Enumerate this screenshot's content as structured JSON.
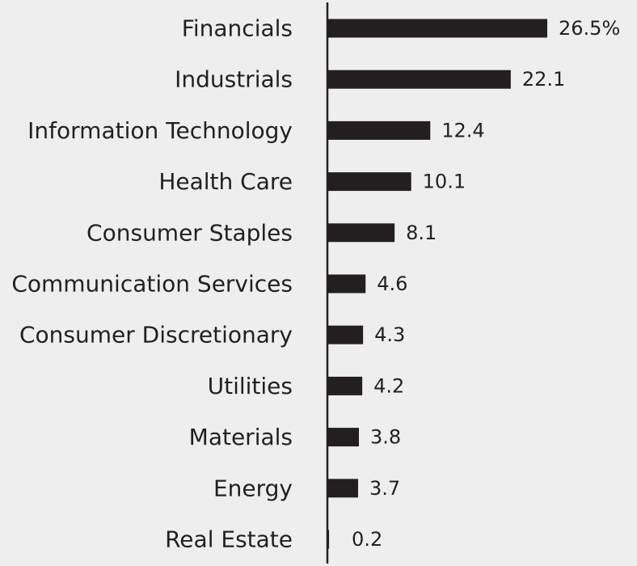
{
  "chart_data": {
    "type": "bar",
    "orientation": "horizontal",
    "categories": [
      "Financials",
      "Industrials",
      "Information Technology",
      "Health Care",
      "Consumer Staples",
      "Communication Services",
      "Consumer Discretionary",
      "Utilities",
      "Materials",
      "Energy",
      "Real Estate"
    ],
    "values": [
      26.5,
      22.1,
      12.4,
      10.1,
      8.1,
      4.6,
      4.3,
      4.2,
      3.8,
      3.7,
      0.2
    ],
    "value_labels": [
      "26.5%",
      "22.1",
      "12.4",
      "10.1",
      "8.1",
      "4.6",
      "4.3",
      "4.2",
      "3.8",
      "3.7",
      "0.2"
    ],
    "title": "",
    "xlabel": "",
    "ylabel": "",
    "xlim": [
      0,
      26.5
    ],
    "grid": false,
    "legend": "none",
    "colors": {
      "bar": "#231f20",
      "axis": "#231f20",
      "text": "#231f20",
      "background": "#eeeeef"
    }
  }
}
